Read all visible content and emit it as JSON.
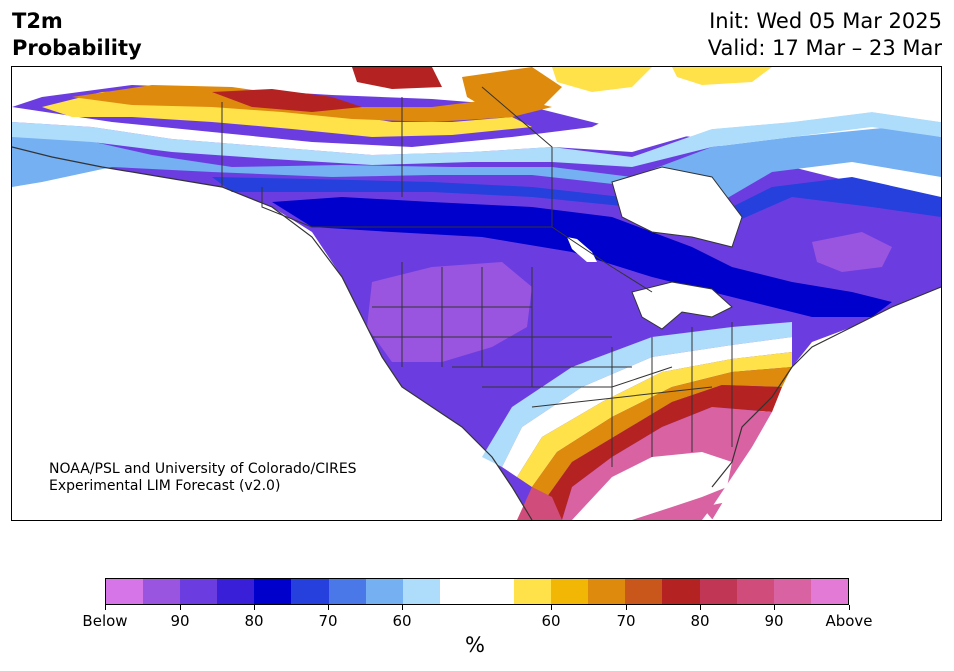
{
  "title": {
    "left_line1": "T2m",
    "left_line2": "Probability",
    "right_line1": "Init: Wed 05 Mar 2025",
    "right_line2": "Valid: 17 Mar – 23 Mar"
  },
  "credit": {
    "line1": "NOAA/PSL and University of Colorado/CIRES",
    "line2": "Experimental LIM Forecast (v2.0)"
  },
  "colorbar": {
    "unit": "%",
    "tick_labels": [
      "Below",
      "90",
      "80",
      "70",
      "60",
      "60",
      "70",
      "80",
      "90",
      "Above"
    ],
    "colors": [
      "#d675e8",
      "#9a55e0",
      "#6b3de0",
      "#3a1fd8",
      "#0000cc",
      "#2540dc",
      "#4a78e8",
      "#74b0f2",
      "#aedcfb",
      "#ffffff",
      "#ffffff",
      "#ffe14a",
      "#f2b705",
      "#de8a0c",
      "#c9561a",
      "#b42222",
      "#c23655",
      "#d04c7a",
      "#d862a2",
      "#e27ad6"
    ]
  },
  "map_colors": {
    "deep_purple": "#6b3de0",
    "light_purple": "#9a55e0",
    "dark_blue": "#0000cc",
    "mid_blue": "#2540dc",
    "light_blue": "#74b0f2",
    "pale_blue": "#aedcfb",
    "yellow": "#ffe14a",
    "orange": "#de8a0c",
    "red": "#b42222",
    "pink": "#d862a2"
  }
}
